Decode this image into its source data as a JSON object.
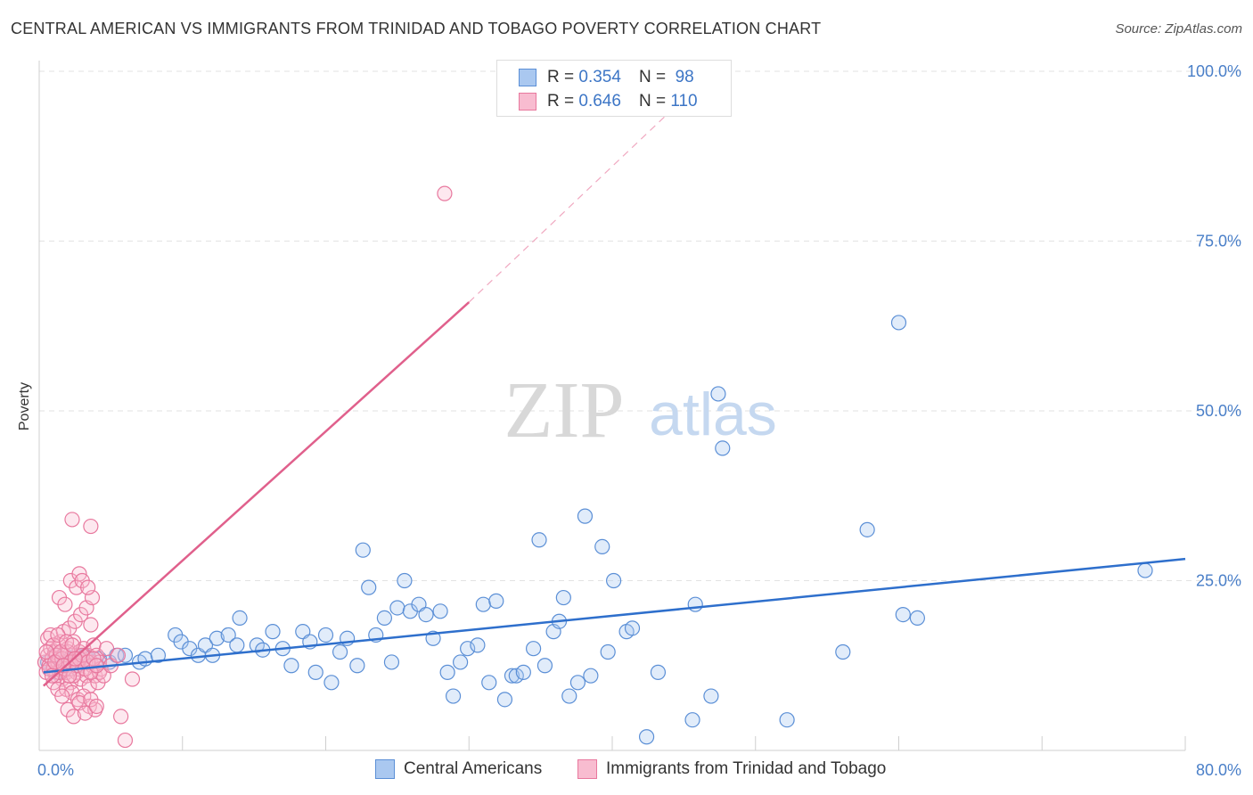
{
  "title": "CENTRAL AMERICAN VS IMMIGRANTS FROM TRINIDAD AND TOBAGO POVERTY CORRELATION CHART",
  "source": "Source: ZipAtlas.com",
  "watermark": {
    "zip": "ZIP",
    "atlas": "atlas"
  },
  "legend_top": {
    "r_label": "R =",
    "n_label": "N =",
    "rows": [
      {
        "r": "0.354",
        "n": "98",
        "color": "#aac8f0",
        "stroke": "#5b8fd6"
      },
      {
        "r": "0.646",
        "n": "110",
        "color": "#f8bcd0",
        "stroke": "#e8789e"
      }
    ]
  },
  "legend_bottom": [
    {
      "label": "Central Americans",
      "color": "#aac8f0",
      "stroke": "#5b8fd6"
    },
    {
      "label": "Immigrants from Trinidad and Tobago",
      "color": "#f8bcd0",
      "stroke": "#e8789e"
    }
  ],
  "colors": {
    "blue_line": "#2e6fcc",
    "pink_line": "#e0608c",
    "tick_text": "#4a7fc8",
    "grid": "#e2e2e2"
  },
  "chart_data": {
    "type": "scatter",
    "title": "CENTRAL AMERICAN VS IMMIGRANTS FROM TRINIDAD AND TOBAGO POVERTY CORRELATION CHART",
    "xlabel": "",
    "ylabel": "Poverty",
    "xlim": [
      0,
      80
    ],
    "ylim": [
      0,
      100
    ],
    "x_tick_labels": [
      {
        "value": 0,
        "label": "0.0%"
      },
      {
        "value": 80,
        "label": "80.0%"
      }
    ],
    "y_tick_labels": [
      {
        "value": 25,
        "label": "25.0%"
      },
      {
        "value": 50,
        "label": "50.0%"
      },
      {
        "value": 75,
        "label": "75.0%"
      },
      {
        "value": 100,
        "label": "100.0%"
      }
    ],
    "grid": true,
    "series": [
      {
        "name": "Central Americans",
        "r": 0.354,
        "n": 98,
        "trend": {
          "x0": 0.3,
          "y0": 11.5,
          "x1": 80,
          "y1": 28.2
        },
        "points": [
          [
            0.6,
            13
          ],
          [
            0.9,
            12
          ],
          [
            1.1,
            14
          ],
          [
            1.2,
            11.5
          ],
          [
            1.4,
            13.5
          ],
          [
            1.6,
            12.5
          ],
          [
            1.8,
            14
          ],
          [
            2.0,
            13
          ],
          [
            2.2,
            12
          ],
          [
            2.4,
            13.5
          ],
          [
            2.6,
            14
          ],
          [
            2.8,
            12.5
          ],
          [
            3.0,
            13
          ],
          [
            3.2,
            14
          ],
          [
            3.5,
            13.5
          ],
          [
            4.2,
            13.5
          ],
          [
            4.9,
            13
          ],
          [
            5.4,
            14
          ],
          [
            6.0,
            14
          ],
          [
            7.0,
            13
          ],
          [
            7.4,
            13.5
          ],
          [
            8.3,
            14
          ],
          [
            9.5,
            17
          ],
          [
            9.9,
            16
          ],
          [
            10.5,
            15
          ],
          [
            11.1,
            14
          ],
          [
            11.6,
            15.5
          ],
          [
            12.1,
            14
          ],
          [
            12.4,
            16.5
          ],
          [
            13.2,
            17
          ],
          [
            13.8,
            15.5
          ],
          [
            14.0,
            19.5
          ],
          [
            15.2,
            15.5
          ],
          [
            15.6,
            14.8
          ],
          [
            16.3,
            17.5
          ],
          [
            17.0,
            15
          ],
          [
            17.6,
            12.5
          ],
          [
            18.4,
            17.5
          ],
          [
            18.9,
            16
          ],
          [
            19.3,
            11.5
          ],
          [
            20.0,
            17
          ],
          [
            20.4,
            10
          ],
          [
            21.0,
            14.5
          ],
          [
            21.5,
            16.5
          ],
          [
            22.2,
            12.5
          ],
          [
            22.6,
            29.5
          ],
          [
            23.0,
            24
          ],
          [
            23.5,
            17
          ],
          [
            24.1,
            19.5
          ],
          [
            24.6,
            13
          ],
          [
            25.0,
            21
          ],
          [
            25.5,
            25
          ],
          [
            25.9,
            20.5
          ],
          [
            26.5,
            21.5
          ],
          [
            27.0,
            20
          ],
          [
            27.5,
            16.5
          ],
          [
            28.0,
            20.5
          ],
          [
            28.5,
            11.5
          ],
          [
            28.9,
            8
          ],
          [
            29.4,
            13
          ],
          [
            29.9,
            15
          ],
          [
            30.6,
            15.5
          ],
          [
            31.0,
            21.5
          ],
          [
            31.4,
            10
          ],
          [
            31.9,
            22
          ],
          [
            32.5,
            7.5
          ],
          [
            33.0,
            11
          ],
          [
            33.3,
            11
          ],
          [
            33.8,
            11.5
          ],
          [
            34.5,
            15
          ],
          [
            34.9,
            31
          ],
          [
            35.3,
            12.5
          ],
          [
            35.9,
            17.5
          ],
          [
            36.3,
            19
          ],
          [
            36.6,
            22.5
          ],
          [
            37.0,
            8
          ],
          [
            37.6,
            10
          ],
          [
            38.1,
            34.5
          ],
          [
            38.5,
            11
          ],
          [
            39.3,
            30
          ],
          [
            39.7,
            14.5
          ],
          [
            40.1,
            25
          ],
          [
            41.0,
            17.5
          ],
          [
            41.4,
            18
          ],
          [
            42.4,
            2
          ],
          [
            43.2,
            11.5
          ],
          [
            45.6,
            4.5
          ],
          [
            45.8,
            21.5
          ],
          [
            46.9,
            8
          ],
          [
            47.4,
            52.5
          ],
          [
            47.7,
            44.5
          ],
          [
            52.2,
            4.5
          ],
          [
            56.1,
            14.5
          ],
          [
            57.8,
            32.5
          ],
          [
            60.0,
            63
          ],
          [
            60.3,
            20
          ],
          [
            61.3,
            19.5
          ],
          [
            77.2,
            26.5
          ]
        ]
      },
      {
        "name": "Immigrants from Trinidad and Tobago",
        "r": 0.646,
        "n": 110,
        "trend": {
          "x0": 0.3,
          "y0": 9.5,
          "x1": 30,
          "y1": 66,
          "dashed_to": {
            "x": 47,
            "y": 100
          }
        },
        "points": [
          [
            0.4,
            13
          ],
          [
            0.5,
            11.5
          ],
          [
            0.6,
            14
          ],
          [
            0.7,
            12.5
          ],
          [
            0.8,
            15
          ],
          [
            0.9,
            13.5
          ],
          [
            1.0,
            12
          ],
          [
            1.1,
            14.5
          ],
          [
            1.2,
            11
          ],
          [
            1.3,
            13
          ],
          [
            1.4,
            15.5
          ],
          [
            1.5,
            12
          ],
          [
            1.6,
            10.5
          ],
          [
            1.7,
            14
          ],
          [
            1.8,
            13
          ],
          [
            1.9,
            11.5
          ],
          [
            2.0,
            15
          ],
          [
            2.1,
            12.5
          ],
          [
            2.2,
            10
          ],
          [
            2.3,
            14
          ],
          [
            2.4,
            16
          ],
          [
            2.5,
            13
          ],
          [
            2.6,
            11.5
          ],
          [
            2.7,
            12
          ],
          [
            2.8,
            14.5
          ],
          [
            2.9,
            10.5
          ],
          [
            3.0,
            13.5
          ],
          [
            3.1,
            15
          ],
          [
            3.2,
            12
          ],
          [
            3.3,
            11
          ],
          [
            3.4,
            14
          ],
          [
            3.5,
            9.5
          ],
          [
            3.6,
            13
          ],
          [
            3.7,
            12.5
          ],
          [
            3.8,
            15.5
          ],
          [
            3.9,
            11
          ],
          [
            4.0,
            14
          ],
          [
            4.1,
            10
          ],
          [
            4.2,
            13
          ],
          [
            4.3,
            12
          ],
          [
            0.6,
            16.5
          ],
          [
            0.8,
            17
          ],
          [
            1.0,
            10
          ],
          [
            1.3,
            9
          ],
          [
            1.5,
            16
          ],
          [
            1.7,
            17.5
          ],
          [
            1.9,
            9
          ],
          [
            2.1,
            18
          ],
          [
            2.3,
            8.5
          ],
          [
            2.5,
            19
          ],
          [
            2.7,
            7.5
          ],
          [
            2.9,
            20
          ],
          [
            3.1,
            8
          ],
          [
            3.3,
            21
          ],
          [
            3.5,
            6.5
          ],
          [
            3.7,
            22.5
          ],
          [
            3.9,
            6
          ],
          [
            1.4,
            22.5
          ],
          [
            1.8,
            21.5
          ],
          [
            2.2,
            25
          ],
          [
            2.6,
            24
          ],
          [
            2.8,
            26
          ],
          [
            3.0,
            25
          ],
          [
            3.4,
            24
          ],
          [
            3.6,
            18.5
          ],
          [
            1.6,
            8
          ],
          [
            2.0,
            6
          ],
          [
            2.4,
            5
          ],
          [
            2.8,
            7
          ],
          [
            3.2,
            5.5
          ],
          [
            3.6,
            7.5
          ],
          [
            4.0,
            6.5
          ],
          [
            4.2,
            11.5
          ],
          [
            4.5,
            11
          ],
          [
            4.7,
            15
          ],
          [
            5.0,
            12.5
          ],
          [
            5.5,
            14
          ],
          [
            5.7,
            5
          ],
          [
            6.0,
            1.5
          ],
          [
            6.5,
            10.5
          ],
          [
            1.0,
            15.5
          ],
          [
            1.2,
            14
          ],
          [
            1.4,
            11.5
          ],
          [
            1.6,
            13.5
          ],
          [
            1.8,
            12
          ],
          [
            2.0,
            14.5
          ],
          [
            2.2,
            13
          ],
          [
            2.4,
            11
          ],
          [
            2.6,
            12.5
          ],
          [
            2.8,
            13.5
          ],
          [
            3.0,
            14
          ],
          [
            3.2,
            12
          ],
          [
            3.4,
            13
          ],
          [
            3.6,
            11.5
          ],
          [
            3.8,
            13.5
          ],
          [
            4.0,
            12.5
          ],
          [
            0.5,
            14.5
          ],
          [
            0.7,
            12
          ],
          [
            0.9,
            11
          ],
          [
            1.1,
            13
          ],
          [
            2.3,
            34
          ],
          [
            3.6,
            33
          ],
          [
            28.3,
            82
          ],
          [
            1.3,
            17
          ],
          [
            1.5,
            14.5
          ],
          [
            1.7,
            12.5
          ],
          [
            1.9,
            16
          ],
          [
            2.1,
            11
          ],
          [
            2.3,
            15.5
          ],
          [
            2.5,
            13.5
          ]
        ]
      }
    ]
  }
}
